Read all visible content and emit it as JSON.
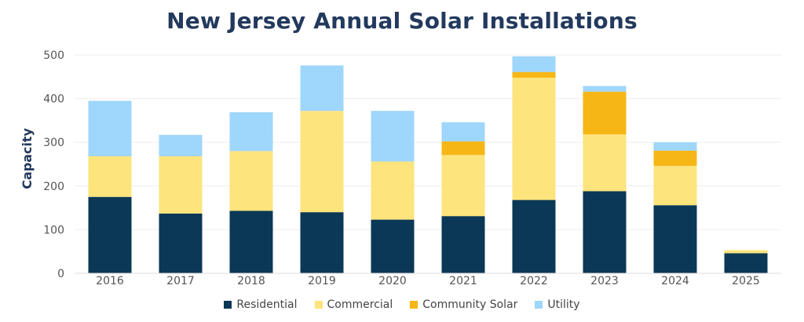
{
  "chart_data": {
    "type": "bar",
    "stacked": true,
    "title": "New Jersey Annual Solar Installations",
    "ylabel": "Capacity",
    "xlabel": "",
    "ylim": [
      0,
      500
    ],
    "yticks": [
      0,
      100,
      200,
      300,
      400,
      500
    ],
    "grid": true,
    "legend_position": "bottom",
    "categories": [
      "2016",
      "2017",
      "2018",
      "2019",
      "2020",
      "2021",
      "2022",
      "2023",
      "2024",
      "2025"
    ],
    "series": [
      {
        "name": "Residential",
        "color": "#0b3856",
        "values": [
          175,
          137,
          143,
          140,
          123,
          131,
          168,
          188,
          156,
          46
        ]
      },
      {
        "name": "Commercial",
        "color": "#fde47c",
        "values": [
          93,
          131,
          137,
          232,
          133,
          140,
          280,
          130,
          90,
          7
        ]
      },
      {
        "name": "Community Solar",
        "color": "#f6b615",
        "values": [
          0,
          0,
          0,
          0,
          0,
          31,
          13,
          98,
          35,
          0
        ]
      },
      {
        "name": "Utility",
        "color": "#9fd6fb",
        "values": [
          127,
          49,
          89,
          104,
          116,
          44,
          36,
          13,
          19,
          0
        ]
      }
    ]
  }
}
